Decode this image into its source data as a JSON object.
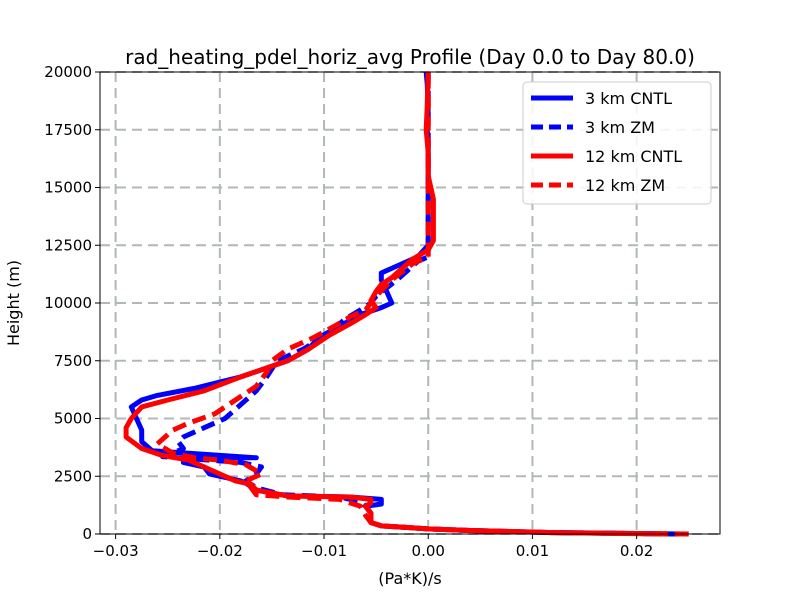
{
  "chart_data": {
    "type": "line",
    "title": "rad_heating_pdel_horiz_avg Profile (Day 0.0 to Day 80.0)",
    "xlabel": "(Pa*K)/s",
    "ylabel": "Height (m)",
    "xlim": [
      -0.0315,
      0.028
    ],
    "ylim": [
      0,
      20000
    ],
    "xticks": [
      -0.03,
      -0.02,
      -0.01,
      0.0,
      0.01,
      0.02
    ],
    "xtick_labels": [
      "−0.03",
      "−0.02",
      "−0.01",
      "0.00",
      "0.01",
      "0.02"
    ],
    "yticks": [
      0,
      2500,
      5000,
      7500,
      10000,
      12500,
      15000,
      17500,
      20000
    ],
    "ytick_labels": [
      "0",
      "2500",
      "5000",
      "7500",
      "10000",
      "12500",
      "15000",
      "17500",
      "20000"
    ],
    "grid": true,
    "legend_position": "top-right",
    "series": [
      {
        "name": "3 km CNTL",
        "color": "#0000ff",
        "style": "solid",
        "x": [
          0.024,
          0.012,
          0.004,
          0.0,
          -0.002,
          -0.0045,
          -0.0055,
          -0.0055,
          -0.006,
          -0.0045,
          -0.0045,
          -0.0075,
          -0.0135,
          -0.0165,
          -0.0175,
          -0.018,
          -0.019,
          -0.021,
          -0.0215,
          -0.0235,
          -0.0235,
          -0.0165,
          -0.0265,
          -0.0275,
          -0.0275,
          -0.028,
          -0.0285,
          -0.0275,
          -0.026,
          -0.0225,
          -0.018,
          -0.0135,
          -0.0115,
          -0.0105,
          -0.0085,
          -0.0065,
          -0.0045,
          -0.0035,
          -0.004,
          -0.0045,
          -0.0045,
          -0.003,
          -0.001,
          0.0,
          0.0,
          0.0,
          0.0,
          0.0,
          0.0,
          0.0,
          -0.0001,
          0.0,
          -0.0001,
          -0.0002
        ],
        "y": [
          0,
          60,
          150,
          220,
          280,
          350,
          500,
          900,
          1200,
          1300,
          1500,
          1600,
          1650,
          1900,
          2200,
          2300,
          2400,
          2600,
          2900,
          3100,
          3300,
          3300,
          3600,
          4000,
          4500,
          5000,
          5500,
          5800,
          6000,
          6300,
          6800,
          7500,
          8000,
          8500,
          9000,
          9500,
          9800,
          10000,
          10500,
          11000,
          11300,
          11600,
          12000,
          12500,
          13000,
          14000,
          15000,
          16000,
          16500,
          17000,
          17500,
          18500,
          19500,
          20000
        ]
      },
      {
        "name": "3 km ZM",
        "color": "#0000ff",
        "style": "dashed",
        "x": [
          0.024,
          0.012,
          0.004,
          0.0,
          -0.002,
          -0.0045,
          -0.0055,
          -0.0055,
          -0.006,
          -0.0065,
          -0.0085,
          -0.014,
          -0.0165,
          -0.0175,
          -0.0165,
          -0.016,
          -0.018,
          -0.021,
          -0.024,
          -0.0255,
          -0.0245,
          -0.0235,
          -0.024,
          -0.0235,
          -0.0215,
          -0.0195,
          -0.018,
          -0.0165,
          -0.0155,
          -0.0145,
          -0.012,
          -0.0095,
          -0.008,
          -0.0065,
          -0.0055,
          -0.005,
          -0.003,
          -0.001,
          0.0,
          0.0,
          0.0,
          0.0,
          0.0,
          0.0,
          0.0,
          0.0,
          0.0,
          0.0
        ],
        "y": [
          0,
          60,
          150,
          220,
          280,
          350,
          500,
          900,
          1200,
          1400,
          1600,
          1700,
          2000,
          2300,
          2600,
          2900,
          3100,
          3200,
          3300,
          3350,
          3500,
          3700,
          4000,
          4200,
          4600,
          5000,
          5600,
          6200,
          6800,
          7500,
          8000,
          8700,
          9300,
          9700,
          10000,
          10300,
          11000,
          11800,
          12000,
          12500,
          13000,
          14000,
          15000,
          16000,
          17000,
          18000,
          19000,
          20000
        ]
      },
      {
        "name": "12 km CNTL",
        "color": "#ff0000",
        "style": "solid",
        "x": [
          0.023,
          0.012,
          0.004,
          0.0,
          -0.002,
          -0.0045,
          -0.0055,
          -0.0055,
          -0.006,
          -0.0055,
          -0.0055,
          -0.0075,
          -0.0135,
          -0.0165,
          -0.017,
          -0.0185,
          -0.0195,
          -0.0205,
          -0.0215,
          -0.023,
          -0.0255,
          -0.0275,
          -0.029,
          -0.029,
          -0.0285,
          -0.0275,
          -0.025,
          -0.0215,
          -0.018,
          -0.0135,
          -0.0115,
          -0.0095,
          -0.0075,
          -0.006,
          -0.005,
          -0.0055,
          -0.005,
          -0.0045,
          -0.0035,
          -0.0025,
          -0.0015,
          0.0,
          0.0005,
          0.0005,
          0.0005,
          0.0005,
          0.0,
          0.0,
          -0.0002,
          -0.0001,
          0.0
        ],
        "y": [
          0,
          60,
          150,
          220,
          280,
          350,
          500,
          900,
          1200,
          1350,
          1500,
          1600,
          1650,
          1900,
          2150,
          2300,
          2500,
          2700,
          2900,
          3200,
          3400,
          3700,
          4200,
          4600,
          5000,
          5500,
          5800,
          6200,
          6800,
          7500,
          8000,
          8600,
          9100,
          9500,
          9800,
          10100,
          10500,
          10800,
          11100,
          11500,
          11900,
          12300,
          12700,
          13000,
          13500,
          14500,
          15500,
          16500,
          17500,
          18500,
          20000
        ]
      },
      {
        "name": "12 km ZM",
        "color": "#ff0000",
        "style": "dashed",
        "x": [
          0.025,
          0.012,
          0.004,
          0.0,
          -0.002,
          -0.0045,
          -0.0055,
          -0.006,
          -0.0065,
          -0.0085,
          -0.0135,
          -0.0165,
          -0.017,
          -0.0175,
          -0.016,
          -0.0175,
          -0.02,
          -0.0225,
          -0.0245,
          -0.026,
          -0.0255,
          -0.0245,
          -0.023,
          -0.0205,
          -0.0185,
          -0.0165,
          -0.0155,
          -0.015,
          -0.0135,
          -0.011,
          -0.009,
          -0.0075,
          -0.006,
          -0.0055,
          -0.005,
          -0.0035,
          -0.0015,
          0.0,
          0.0,
          0.0,
          0.0,
          0.0,
          0.0,
          0.0,
          0.0,
          0.0
        ],
        "y": [
          0,
          60,
          150,
          220,
          280,
          350,
          500,
          800,
          1200,
          1500,
          1600,
          1700,
          2000,
          2300,
          2600,
          3000,
          3200,
          3300,
          3500,
          3900,
          4100,
          4500,
          4800,
          5200,
          5800,
          6400,
          7000,
          7500,
          8000,
          8500,
          9000,
          9400,
          9700,
          10000,
          10300,
          11000,
          11700,
          12000,
          12500,
          13000,
          14000,
          15000,
          16000,
          17000,
          18500,
          20000
        ]
      }
    ]
  }
}
